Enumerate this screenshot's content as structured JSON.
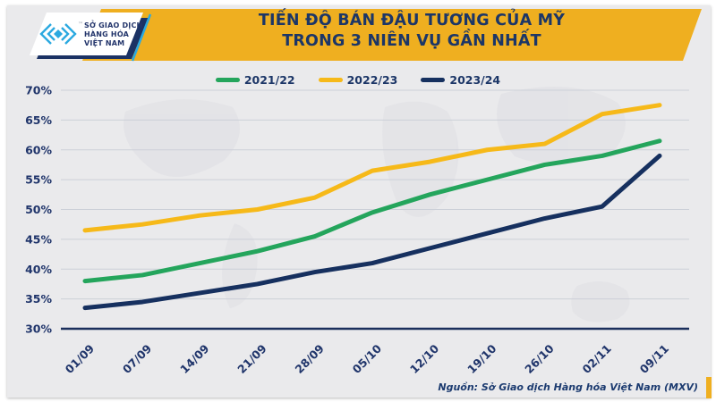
{
  "logo": {
    "line1": "SỞ GIAO DỊCH",
    "line2": "HÀNG HÓA",
    "line3": "VIỆT NAM",
    "tm": "™"
  },
  "title": {
    "line1": "TIẾN ĐỘ BÁN ĐẬU TƯƠNG CỦA MỸ",
    "line2": "TRONG 3 NIÊN VỤ GẦN NHẤT"
  },
  "footer": {
    "source": "Nguồn: Sở Giao dịch Hàng hóa Việt Nam (MXV)"
  },
  "colors": {
    "banner_yellow": "#efaf20",
    "card_bg": "#eaeaec",
    "gridline": "#ccd0d8",
    "axis_navy": "#1b2f5c",
    "label_navy": "#20356b",
    "title_navy": "#1c3667",
    "logo_cyan": "#2ba9e0",
    "logo_navy_shadow": "#1b3264"
  },
  "chart_data": {
    "type": "line",
    "title": "TIẾN ĐỘ BÁN ĐẬU TƯƠNG CỦA MỸ TRONG 3 NIÊN VỤ GẦN NHẤT",
    "categories": [
      "01/09",
      "07/09",
      "14/09",
      "21/09",
      "28/09",
      "05/10",
      "12/10",
      "19/10",
      "26/10",
      "02/11",
      "09/11"
    ],
    "series": [
      {
        "name": "2021/22",
        "color": "#24a55c",
        "values": [
          38,
          39,
          41,
          43,
          45.5,
          49.5,
          52.5,
          55,
          57.5,
          59,
          61.5
        ]
      },
      {
        "name": "2022/23",
        "color": "#f6b919",
        "values": [
          46.5,
          47.5,
          49,
          50,
          52,
          56.5,
          58,
          60,
          61,
          66,
          67.5
        ]
      },
      {
        "name": "2023/24",
        "color": "#16305f",
        "values": [
          33.5,
          34.5,
          36,
          37.5,
          39.5,
          41,
          43.5,
          46,
          48.5,
          50.5,
          59
        ]
      }
    ],
    "xlabel": "",
    "ylabel": "",
    "ylim": [
      30,
      70
    ],
    "ytick_step": 5,
    "ytick_format": "percent",
    "grid": "horizontal",
    "legend_position": "top"
  }
}
